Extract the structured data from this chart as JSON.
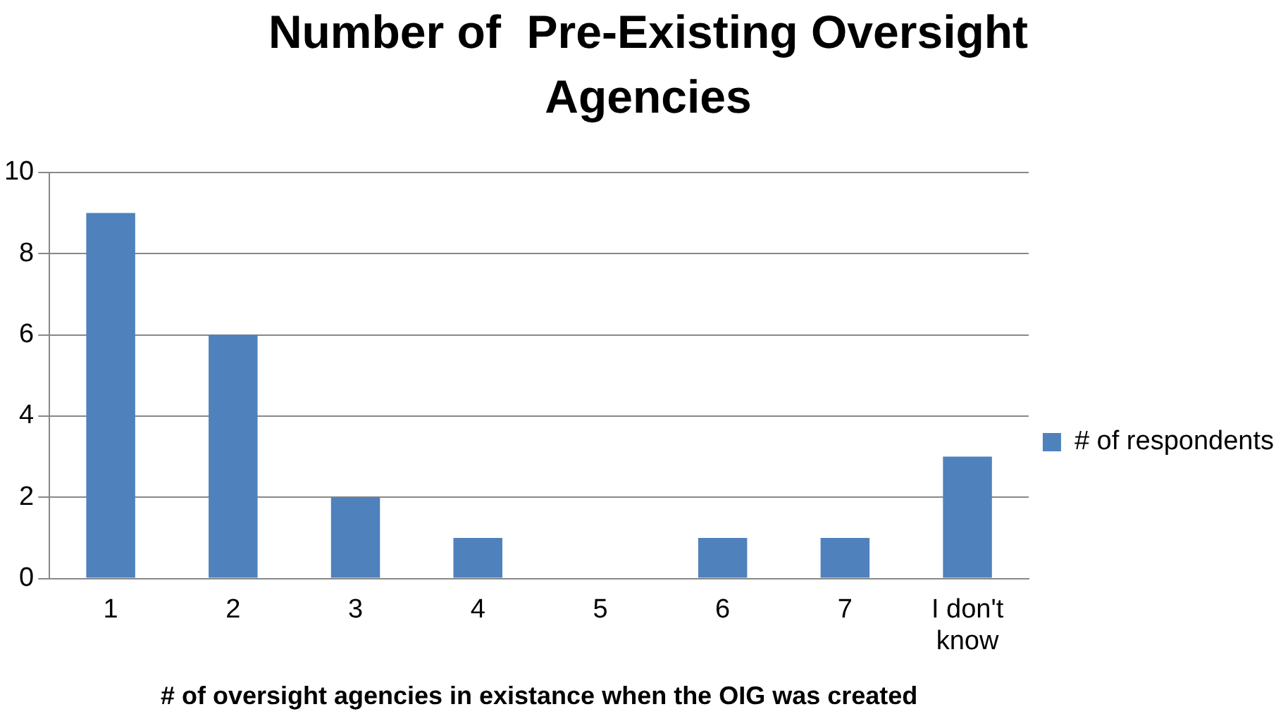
{
  "chart_data": {
    "type": "bar",
    "title": "Number of  Pre-Existing Oversight Agencies",
    "xlabel": "# of oversight agencies in existance when the OIG was created",
    "categories": [
      "1",
      "2",
      "3",
      "4",
      "5",
      "6",
      "7",
      "I don't know"
    ],
    "series": [
      {
        "name": "# of respondents",
        "color": "#4f81bd",
        "values": [
          9,
          6,
          2,
          1,
          0,
          1,
          1,
          3
        ]
      }
    ],
    "ylim": [
      0,
      10
    ],
    "yticks": [
      0,
      2,
      4,
      6,
      8,
      10
    ],
    "grid": "y",
    "legend": "right"
  }
}
